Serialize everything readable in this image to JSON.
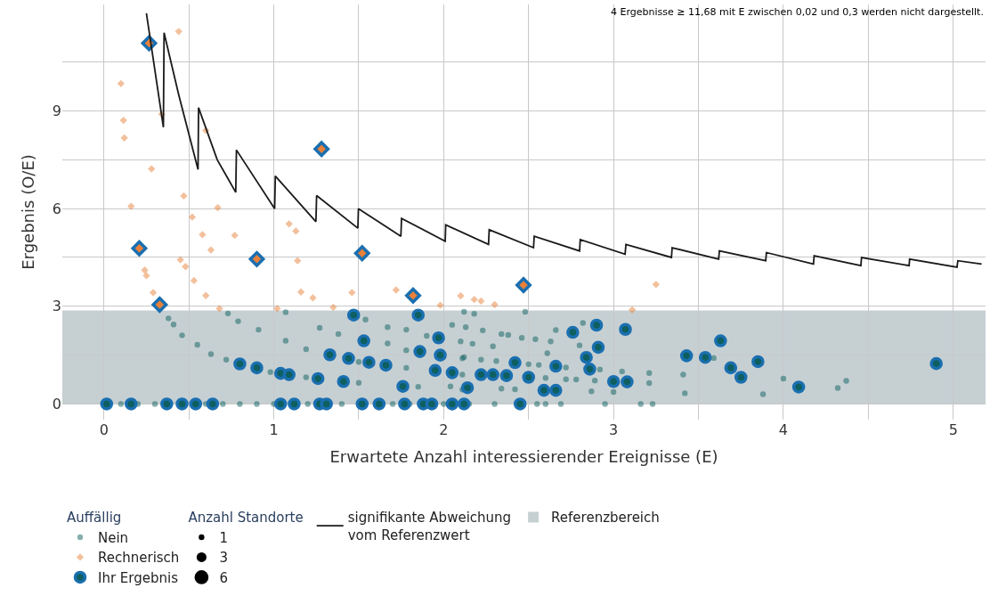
{
  "chart_data": {
    "type": "bubble",
    "xlabel": "Erwartete Anzahl interessierender Ereignisse (E)",
    "ylabel": "Ergebnis (O/E)",
    "annotations": [
      "4 Ergebnisse ≥ 11,68 mit E zwischen 0,02 und 0,3 werden nicht dargestellt."
    ],
    "xlim": [
      -0.245,
      5.19
    ],
    "ylim": [
      -0.48,
      12.27
    ],
    "xticks": [
      0,
      {
        "value": 0.5,
        "label": null
      },
      1,
      {
        "value": 1.5,
        "label": null
      },
      2,
      {
        "value": 2.5,
        "label": null
      },
      3,
      {
        "value": 3.5,
        "label": null
      },
      4,
      {
        "value": 4.5,
        "label": null
      },
      5
    ],
    "yticks": [
      0,
      {
        "value": 1.5,
        "label": null
      },
      3,
      {
        "value": 4.5,
        "label": null
      },
      6,
      {
        "value": 7.5,
        "label": null
      },
      9,
      {
        "value": 10.5,
        "label": null
      }
    ],
    "grid": true,
    "legend": "bottom",
    "legend_title": [
      "Auffällig",
      "Anzahl Standorte"
    ],
    "size_legend": [
      1,
      3,
      6
    ],
    "bands": [
      {
        "axis": "y",
        "from": 0,
        "to": 2.87,
        "label": "Referenzbereich",
        "color": "#c6d0d3"
      }
    ],
    "series": [
      {
        "name": "Nein",
        "marker": "circle",
        "color": "#0e5f5f",
        "sizes": [
          1,
          1,
          1,
          1,
          1,
          1,
          1,
          1,
          1,
          1,
          1,
          1,
          1,
          1,
          1,
          1,
          1,
          1,
          1,
          1,
          1,
          1,
          1,
          1,
          1,
          1,
          1,
          1,
          1,
          1,
          1,
          1,
          1,
          1,
          1,
          1,
          1,
          1,
          1,
          1,
          1,
          1,
          1,
          1,
          1,
          1,
          1,
          1,
          1,
          1,
          1,
          1,
          1,
          1,
          1,
          1,
          1,
          1,
          1,
          1,
          1,
          1,
          1,
          1,
          1,
          1,
          1,
          1,
          1,
          1,
          1,
          1,
          1,
          1,
          1,
          1,
          1,
          1,
          1,
          1,
          1,
          1,
          1,
          1,
          1,
          1,
          1,
          1,
          1,
          1,
          1,
          1,
          1,
          1
        ],
        "x": [
          0.1,
          0.2,
          0.3,
          0.6,
          0.7,
          0.8,
          0.9,
          1.0,
          1.2,
          1.4,
          1.7,
          1.8,
          2.0,
          2.15,
          2.3,
          2.55,
          2.6,
          2.69,
          2.95,
          3.16,
          3.23,
          0.38,
          0.41,
          0.46,
          0.55,
          0.63,
          0.72,
          0.98,
          1.19,
          1.5,
          1.85,
          2.11,
          0.73,
          0.79,
          0.91,
          1.07,
          1.19,
          1.5,
          1.78,
          2.11,
          1.07,
          1.27,
          1.38,
          1.67,
          1.78,
          2.11,
          1.54,
          1.67,
          1.78,
          1.9,
          2.05,
          2.12,
          2.18,
          2.48,
          2.13,
          2.23,
          2.34,
          2.38,
          2.46,
          2.54,
          2.82,
          2.66,
          2.63,
          2.8,
          2.1,
          2.17,
          2.29,
          2.12,
          2.22,
          2.31,
          2.5,
          2.56,
          2.61,
          2.72,
          2.89,
          2.92,
          3.05,
          3.21,
          3.21,
          3.41,
          3.42,
          3.59,
          3.88,
          4.0,
          4.32,
          4.37,
          2.87,
          3.0,
          2.34,
          2.42,
          2.04,
          2.6,
          2.72,
          2.78
        ],
        "values": [
          0,
          0,
          0,
          0,
          0,
          0,
          0,
          0,
          0,
          0,
          0,
          0,
          0,
          0,
          0,
          0,
          0,
          0,
          0,
          0,
          0,
          2.63,
          2.44,
          2.11,
          1.82,
          1.53,
          1.36,
          0.98,
          0.82,
          0.65,
          0.53,
          0.44,
          2.78,
          2.54,
          2.28,
          1.94,
          1.68,
          1.29,
          1.11,
          0.9,
          2.82,
          2.34,
          2.15,
          1.86,
          1.65,
          1.4,
          2.59,
          2.36,
          2.28,
          2.09,
          2.43,
          2.83,
          2.77,
          2.83,
          2.36,
          2.26,
          2.15,
          2.12,
          2.03,
          1.99,
          2.49,
          2.27,
          1.92,
          1.8,
          1.92,
          1.85,
          1.77,
          1.44,
          1.36,
          1.32,
          1.22,
          1.2,
          1.56,
          1.12,
          0.72,
          1.06,
          1.0,
          0.95,
          0.64,
          0.9,
          0.33,
          1.41,
          0.3,
          0.78,
          0.49,
          0.71,
          0.39,
          0.37,
          0.47,
          0.45,
          0.54,
          0.8,
          0.76,
          0.75
        ]
      },
      {
        "name": "Rechnerisch",
        "marker": "diamond",
        "color": "#e8813a",
        "sizes": [
          1,
          1,
          1,
          1,
          1,
          1,
          1,
          1,
          1,
          1,
          1,
          1,
          1,
          1,
          1,
          1,
          1,
          1,
          1,
          1,
          1,
          1,
          1,
          1,
          1,
          1,
          1,
          1,
          1,
          1,
          1,
          1,
          1,
          1,
          1,
          1,
          1,
          1
        ],
        "x": [
          0.44,
          0.1,
          0.115,
          0.12,
          0.34,
          0.6,
          0.28,
          0.47,
          0.16,
          0.67,
          0.52,
          0.58,
          0.77,
          0.63,
          1.09,
          1.13,
          0.45,
          1.14,
          0.48,
          0.24,
          0.25,
          0.53,
          0.29,
          0.6,
          0.68,
          1.16,
          1.23,
          1.46,
          1.35,
          1.72,
          1.98,
          2.1,
          1.02,
          2.18,
          2.22,
          2.3,
          3.25,
          3.11
        ],
        "values": [
          11.44,
          9.84,
          8.71,
          8.17,
          8.9,
          8.4,
          7.22,
          6.39,
          6.07,
          6.03,
          5.74,
          5.2,
          5.18,
          4.73,
          5.53,
          5.31,
          4.43,
          4.4,
          4.22,
          4.11,
          3.94,
          3.79,
          3.42,
          3.33,
          2.93,
          3.44,
          3.26,
          3.42,
          2.97,
          3.5,
          3.03,
          3.32,
          2.93,
          3.21,
          3.16,
          3.05,
          3.67,
          2.89
        ]
      },
      {
        "name": "Ihr Ergebnis",
        "marker": "circle",
        "color": "#1a6fb0",
        "sizes": [
          3,
          3,
          3,
          3,
          3,
          3,
          3,
          3,
          3,
          3,
          3,
          3,
          3,
          3,
          3,
          3,
          3,
          3,
          3,
          3,
          3,
          3,
          3,
          3,
          3,
          3,
          3,
          3,
          3,
          3,
          3,
          3,
          3,
          3,
          3,
          3,
          3,
          3,
          3,
          3,
          3,
          3,
          3,
          3,
          3,
          3,
          3,
          3,
          3,
          3,
          3,
          3,
          3,
          3,
          3,
          3,
          3,
          3,
          3,
          3,
          3,
          3
        ],
        "x": [
          0.016,
          0.16,
          0.37,
          0.46,
          0.54,
          0.64,
          1.04,
          1.12,
          1.27,
          1.31,
          1.52,
          1.62,
          1.77,
          1.88,
          1.93,
          2.05,
          2.12,
          2.45,
          0.8,
          0.9,
          1.04,
          1.09,
          1.26,
          1.41,
          1.76,
          1.47,
          1.33,
          1.44,
          1.56,
          1.66,
          1.53,
          1.85,
          1.86,
          1.97,
          1.98,
          1.95,
          2.05,
          2.14,
          2.22,
          2.29,
          2.37,
          2.5,
          2.42,
          2.66,
          2.59,
          2.66,
          2.76,
          2.9,
          2.91,
          2.84,
          2.86,
          3.07,
          3.0,
          3.08,
          3.43,
          3.54,
          3.63,
          3.69,
          3.75,
          3.85,
          4.09,
          4.9
        ],
        "values": [
          0,
          0,
          0,
          0,
          0,
          0,
          0,
          0,
          0,
          0,
          0,
          0,
          0,
          0,
          0,
          0,
          0,
          0,
          1.23,
          1.11,
          0.94,
          0.9,
          0.78,
          0.69,
          0.54,
          2.73,
          1.51,
          1.4,
          1.28,
          1.19,
          1.94,
          2.73,
          1.61,
          2.03,
          1.5,
          1.03,
          0.96,
          0.5,
          0.9,
          0.9,
          0.87,
          0.82,
          1.27,
          1.16,
          0.42,
          0.42,
          2.2,
          2.42,
          1.74,
          1.43,
          1.07,
          2.29,
          0.69,
          0.68,
          1.48,
          1.43,
          1.94,
          1.11,
          0.82,
          1.3,
          0.52,
          1.24
        ]
      },
      {
        "marker": "diamond",
        "color": "#1a6fb0",
        "sizes": [
          3,
          3,
          3,
          3,
          3,
          3,
          3,
          3
        ],
        "x": [
          0.266,
          1.281,
          0.208,
          0.328,
          0.9,
          1.52,
          1.82,
          2.47
        ],
        "values": [
          11.08,
          7.83,
          4.78,
          3.05,
          4.45,
          4.63,
          3.33,
          3.65
        ]
      },
      {
        "name": "signifikante Abweichung\nvom Referenzwert",
        "type": "line",
        "marker": "none",
        "line_style": "solid",
        "color": "#1a1a1a",
        "x": [
          0.25,
          0.35,
          0.354,
          0.44,
          0.554,
          0.557,
          0.667,
          0.776,
          0.78,
          1.005,
          1.009,
          1.248,
          1.252,
          1.495,
          1.498,
          1.748,
          1.752,
          2.009,
          2.012,
          2.264,
          2.268,
          2.529,
          2.533,
          2.8,
          2.804,
          3.068,
          3.073,
          3.341,
          3.345,
          3.619,
          3.623,
          3.896,
          3.9,
          4.177,
          4.181,
          4.456,
          4.46,
          4.74,
          4.743,
          5.022,
          5.027,
          5.167
        ],
        "values": [
          12.0,
          8.5,
          11.4,
          9.5,
          7.2,
          9.1,
          7.5,
          6.5,
          7.8,
          6.0,
          7.0,
          5.6,
          6.4,
          5.4,
          6.0,
          5.15,
          5.7,
          5.0,
          5.5,
          4.9,
          5.35,
          4.8,
          5.15,
          4.7,
          5.05,
          4.6,
          4.9,
          4.5,
          4.8,
          4.45,
          4.7,
          4.4,
          4.65,
          4.3,
          4.55,
          4.25,
          4.5,
          4.25,
          4.45,
          4.2,
          4.4,
          4.3
        ]
      }
    ]
  }
}
